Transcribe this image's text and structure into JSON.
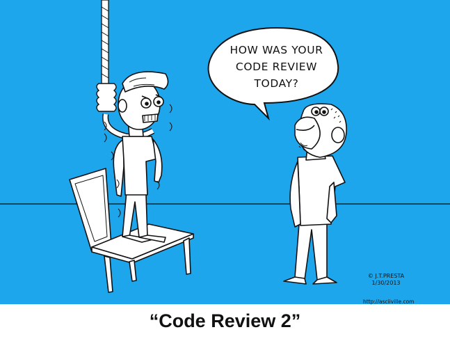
{
  "comic": {
    "speech_lines": [
      "HOW WAS YOUR",
      "CODE REVIEW",
      "TODAY?"
    ],
    "credit_name": "© J.T.PRESTA",
    "credit_date": "1/30/2013",
    "url": "http://asciiville.com",
    "caption": "“Code Review 2”",
    "colors": {
      "background": "#1DA6EC",
      "ink": "#111111",
      "fill": "#FFFFFF"
    }
  }
}
